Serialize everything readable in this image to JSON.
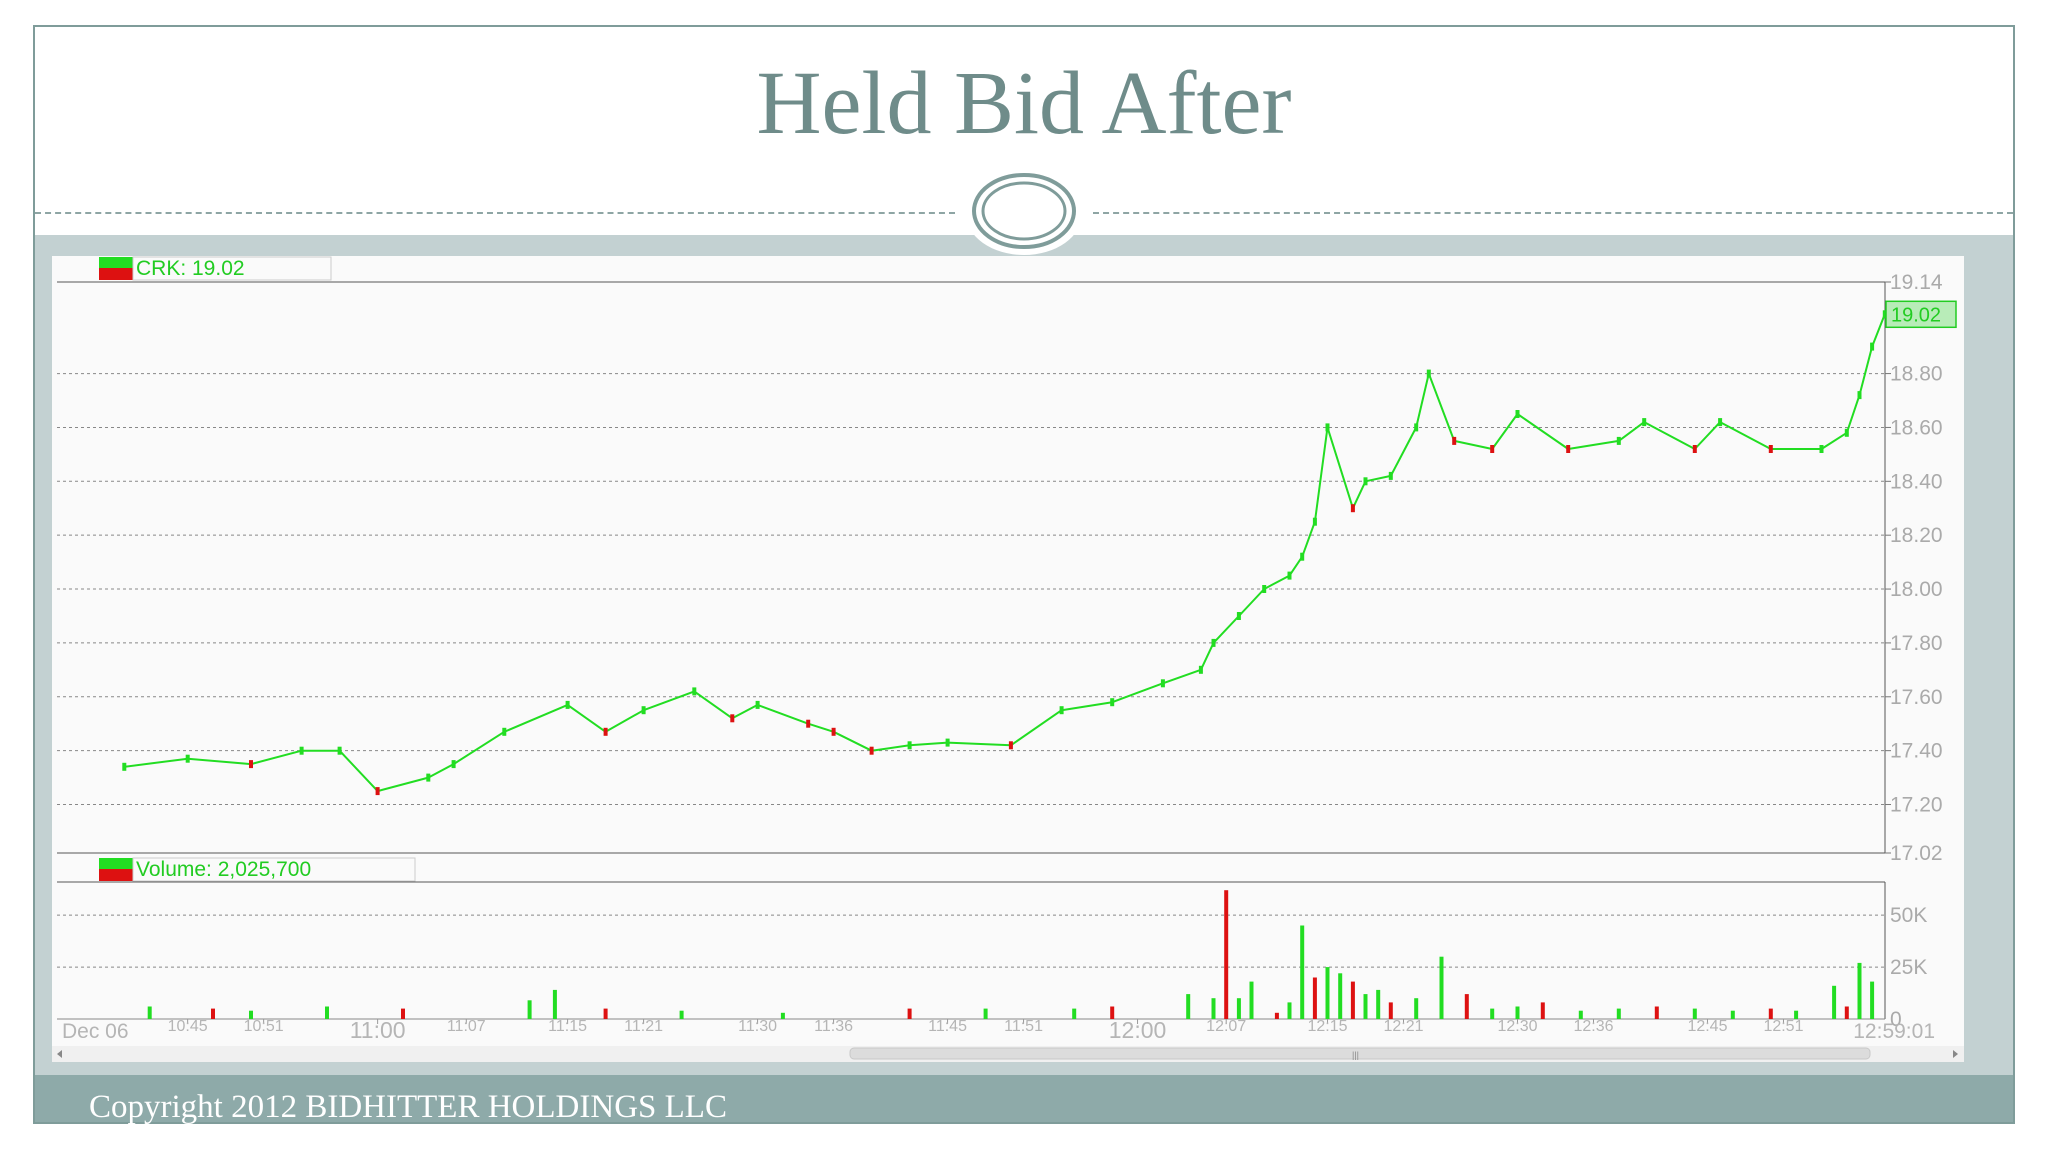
{
  "slide": {
    "title": "Held Bid After",
    "copyright": "Copyright 2012 BIDHITTER HOLDINGS LLC"
  },
  "colors": {
    "up": "#22dd22",
    "down": "#dd1111",
    "accent": "#6f8c8a"
  },
  "chart_data": {
    "type": "line",
    "price_legend": "CRK: 19.02",
    "volume_legend": "Volume: 2,025,700",
    "last_price_label": "19.02",
    "last_price": 19.02,
    "price_axis": {
      "ylim": [
        17.02,
        19.14
      ],
      "ticks": [
        "19.14",
        "18.80",
        "18.60",
        "18.40",
        "18.20",
        "18.00",
        "17.80",
        "17.60",
        "17.40",
        "17.20",
        "17.02"
      ],
      "tick_values": [
        19.14,
        18.8,
        18.6,
        18.4,
        18.2,
        18.0,
        17.8,
        17.6,
        17.4,
        17.2,
        17.02
      ]
    },
    "volume_axis": {
      "ylim": [
        0,
        65000
      ],
      "ticks": [
        "50K",
        "25K",
        "0"
      ],
      "tick_values": [
        50000,
        25000,
        0
      ]
    },
    "x_axis": {
      "start_label": "Dec 06",
      "end_label": "12:59:01",
      "tick_labels": [
        "10:45",
        "10:51",
        "11:00",
        "11:07",
        "11:15",
        "11:21",
        "11:30",
        "11:36",
        "11:45",
        "11:51",
        "12:00",
        "12:07",
        "12:15",
        "12:21",
        "12:30",
        "12:36",
        "12:45",
        "12:51"
      ],
      "major_ticks": [
        "11:00",
        "12:00"
      ]
    },
    "price_series": {
      "x": [
        "10:40",
        "10:45",
        "10:50",
        "10:54",
        "10:57",
        "11:00",
        "11:04",
        "11:06",
        "11:10",
        "11:15",
        "11:18",
        "11:21",
        "11:25",
        "11:28",
        "11:30",
        "11:34",
        "11:36",
        "11:39",
        "11:42",
        "11:45",
        "11:50",
        "11:54",
        "11:58",
        "12:02",
        "12:05",
        "12:06",
        "12:08",
        "12:10",
        "12:12",
        "12:13",
        "12:14",
        "12:15",
        "12:17",
        "12:18",
        "12:20",
        "12:22",
        "12:23",
        "12:25",
        "12:28",
        "12:30",
        "12:34",
        "12:38",
        "12:40",
        "12:44",
        "12:46",
        "12:50",
        "12:54",
        "12:56",
        "12:57",
        "12:58",
        "12:59"
      ],
      "y": [
        17.34,
        17.37,
        17.35,
        17.4,
        17.4,
        17.25,
        17.3,
        17.35,
        17.47,
        17.57,
        17.47,
        17.55,
        17.62,
        17.52,
        17.57,
        17.5,
        17.47,
        17.4,
        17.42,
        17.43,
        17.42,
        17.55,
        17.58,
        17.65,
        17.7,
        17.8,
        17.9,
        18.0,
        18.05,
        18.12,
        18.25,
        18.6,
        18.3,
        18.4,
        18.42,
        18.6,
        18.8,
        18.55,
        18.52,
        18.65,
        18.52,
        18.55,
        18.62,
        18.52,
        18.62,
        18.52,
        18.52,
        18.58,
        18.72,
        18.9,
        19.02
      ]
    },
    "volume_series": {
      "x": [
        "10:42",
        "10:47",
        "10:50",
        "10:56",
        "11:02",
        "11:12",
        "11:14",
        "11:18",
        "11:24",
        "11:32",
        "11:42",
        "11:48",
        "11:55",
        "11:58",
        "12:04",
        "12:06",
        "12:07",
        "12:08",
        "12:09",
        "12:11",
        "12:12",
        "12:13",
        "12:14",
        "12:15",
        "12:16",
        "12:17",
        "12:18",
        "12:19",
        "12:20",
        "12:22",
        "12:24",
        "12:26",
        "12:28",
        "12:30",
        "12:32",
        "12:35",
        "12:38",
        "12:41",
        "12:44",
        "12:47",
        "12:50",
        "12:52",
        "12:55",
        "12:56",
        "12:57",
        "12:58"
      ],
      "values": [
        6000,
        5000,
        4000,
        6000,
        5000,
        9000,
        14000,
        5000,
        4000,
        3000,
        5000,
        5000,
        5000,
        6000,
        12000,
        10000,
        62000,
        10000,
        18000,
        3000,
        8000,
        45000,
        20000,
        25000,
        22000,
        18000,
        12000,
        14000,
        8000,
        10000,
        30000,
        12000,
        5000,
        6000,
        8000,
        4000,
        5000,
        6000,
        5000,
        4000,
        5000,
        4000,
        16000,
        6000,
        27000,
        18000
      ]
    }
  }
}
